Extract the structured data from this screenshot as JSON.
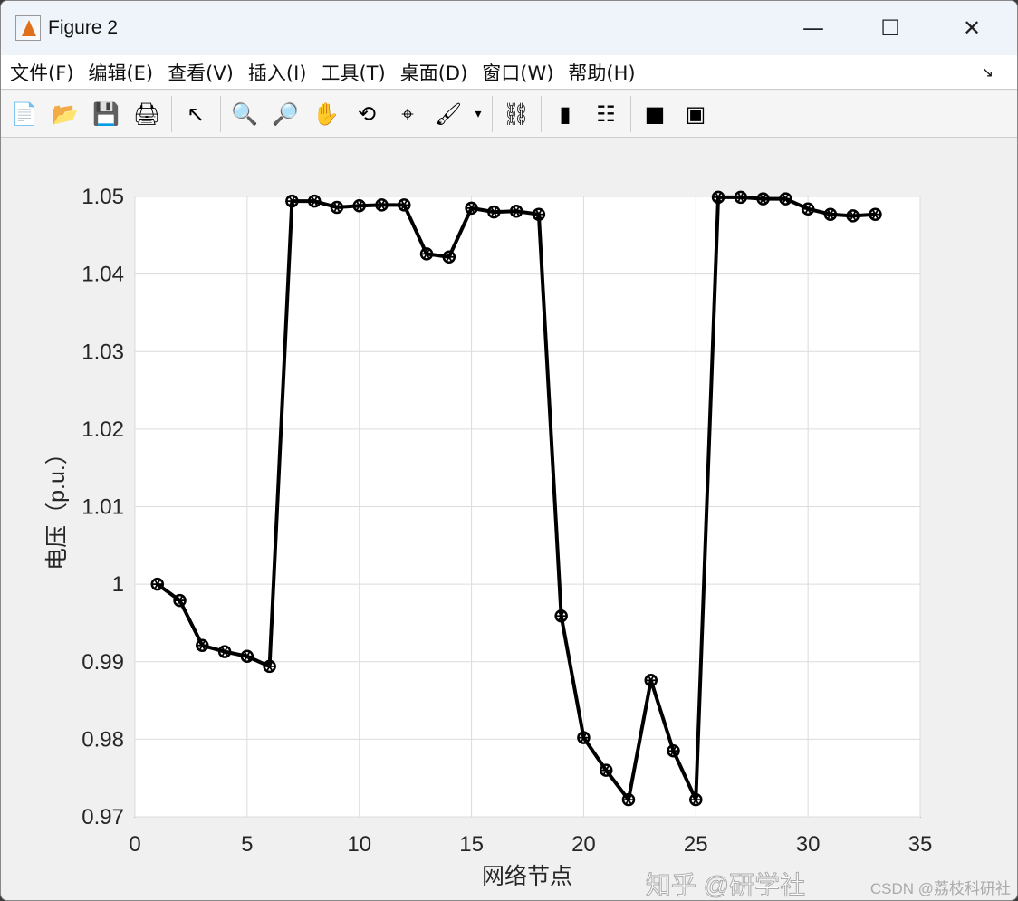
{
  "window": {
    "title": "Figure 2",
    "minimize": "—",
    "maximize": "☐",
    "close": "✕"
  },
  "menu": [
    "文件(F)",
    "编辑(E)",
    "查看(V)",
    "插入(I)",
    "工具(T)",
    "桌面(D)",
    "窗口(W)",
    "帮助(H)"
  ],
  "menu_arrow": "↘",
  "toolbar": [
    {
      "name": "new-figure-icon",
      "glyph": "📄"
    },
    {
      "name": "open-icon",
      "glyph": "📂"
    },
    {
      "name": "save-icon",
      "glyph": "💾"
    },
    {
      "name": "print-icon",
      "glyph": "🖨"
    },
    {
      "sep": true
    },
    {
      "name": "pointer-icon",
      "glyph": "↖"
    },
    {
      "sep": true
    },
    {
      "name": "zoom-in-icon",
      "glyph": "🔍"
    },
    {
      "name": "zoom-out-icon",
      "glyph": "🔎"
    },
    {
      "name": "pan-icon",
      "glyph": "✋"
    },
    {
      "name": "rotate-3d-icon",
      "glyph": "⟲"
    },
    {
      "name": "data-cursor-icon",
      "glyph": "⌖"
    },
    {
      "name": "brush-icon",
      "glyph": "🖌"
    },
    {
      "name": "brush-dropdown-icon",
      "glyph": "▾"
    },
    {
      "sep": true
    },
    {
      "name": "link-plot-icon",
      "glyph": "⛓"
    },
    {
      "sep": true
    },
    {
      "name": "colorbar-icon",
      "glyph": "▮"
    },
    {
      "name": "legend-icon",
      "glyph": "☷"
    },
    {
      "sep": true
    },
    {
      "name": "hide-plot-tools-icon",
      "glyph": "■"
    },
    {
      "name": "show-plot-tools-icon",
      "glyph": "▣"
    }
  ],
  "chart_data": {
    "type": "line",
    "xlabel": "网络节点",
    "ylabel": "电压（p.u.）",
    "xlim": [
      0,
      35
    ],
    "ylim": [
      0.97,
      1.05
    ],
    "xticks": [
      0,
      5,
      10,
      15,
      20,
      25,
      30,
      35
    ],
    "yticks": [
      0.97,
      0.98,
      0.99,
      1,
      1.01,
      1.02,
      1.03,
      1.04,
      1.05
    ],
    "ytick_labels": [
      "0.97",
      "0.98",
      "0.99",
      "1",
      "1.01",
      "1.02",
      "1.03",
      "1.04",
      "1.05"
    ],
    "grid": true,
    "x": [
      1,
      2,
      3,
      4,
      5,
      6,
      7,
      8,
      9,
      10,
      11,
      12,
      13,
      14,
      15,
      16,
      17,
      18,
      19,
      20,
      21,
      22,
      23,
      24,
      25,
      26,
      27,
      28,
      29,
      30,
      31,
      32,
      33
    ],
    "values": [
      1.0,
      0.9979,
      0.9921,
      0.9913,
      0.9907,
      0.9894,
      1.0494,
      1.0494,
      1.0486,
      1.0488,
      1.0489,
      1.0489,
      1.0426,
      1.0422,
      1.0485,
      1.048,
      1.0481,
      1.0477,
      0.9959,
      0.9802,
      0.976,
      0.9722,
      0.9876,
      0.9785,
      0.9722,
      1.0499,
      1.0499,
      1.0497,
      1.0497,
      1.0484,
      1.0477,
      1.0475,
      1.0477
    ],
    "line_color": "#000000",
    "marker": "circle-star"
  },
  "watermark": {
    "main": "知乎 @研学社",
    "sub": "CSDN @荔枝科研社"
  }
}
